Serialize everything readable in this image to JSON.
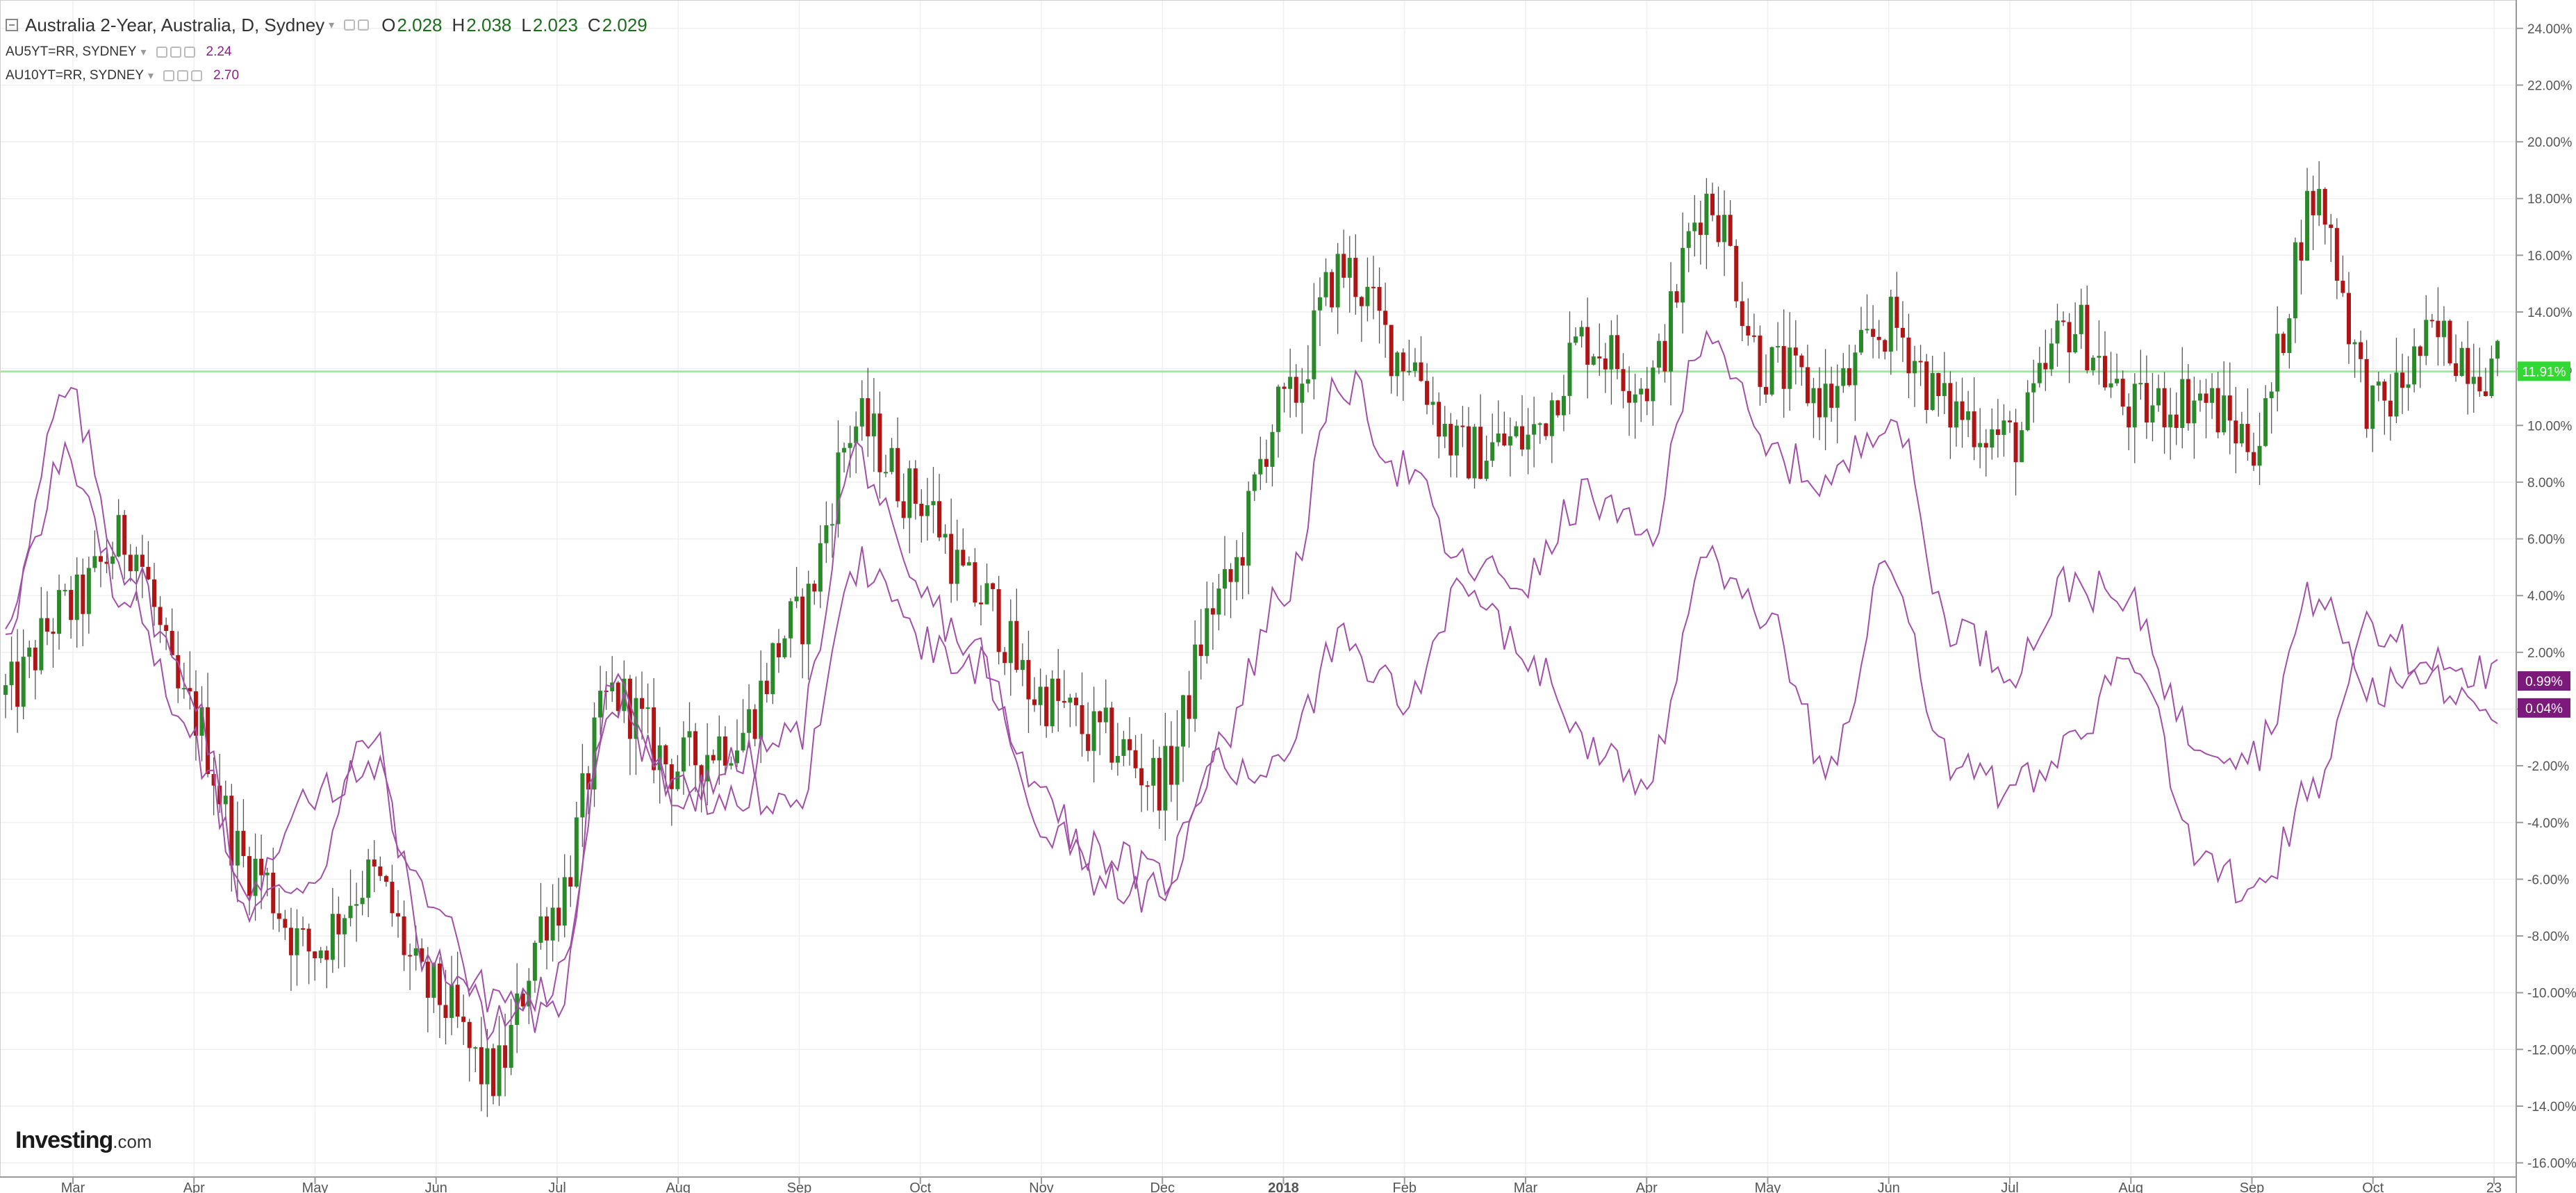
{
  "legend": {
    "main_title": "Australia 2-Year, Australia, D, Sydney",
    "ohlc": [
      {
        "label": "O",
        "value": "2.028"
      },
      {
        "label": "H",
        "value": "2.038"
      },
      {
        "label": "L",
        "value": "2.023"
      },
      {
        "label": "C",
        "value": "2.029"
      }
    ],
    "overlays": [
      {
        "name": "AU5YT=RR, SYDNEY",
        "value": "2.24"
      },
      {
        "name": "AU10YT=RR, SYDNEY",
        "value": "2.70"
      }
    ]
  },
  "logo": {
    "main": "Investing",
    "suffix": ".com"
  },
  "colors": {
    "up": "#2a8a2a",
    "down": "#b01515",
    "overlay": "#a24fa8",
    "overlay_badge": "#7b1a7b",
    "last_badge": "#34d834",
    "last_line": "#9fe89f",
    "grid": "#efefef",
    "axis_text": "#555555"
  },
  "chart_data": {
    "type": "line",
    "title": "Australia 2-Year, Australia, D, Sydney",
    "ylim": [
      -16.5,
      25
    ],
    "y_ticks": [
      "24.00%",
      "22.00%",
      "20.00%",
      "18.00%",
      "16.00%",
      "14.00%",
      "12.00%",
      "10.00%",
      "8.00%",
      "6.00%",
      "4.00%",
      "2.00%",
      "0.00%",
      "-2.00%",
      "-4.00%",
      "-6.00%",
      "-8.00%",
      "-10.00%",
      "-12.00%",
      "-14.00%",
      "-16.00%"
    ],
    "x_ticks": [
      "Mar",
      "Apr",
      "May",
      "Jun",
      "Jul",
      "Aug",
      "Sep",
      "Oct",
      "Nov",
      "Dec",
      "2018",
      "Feb",
      "Mar",
      "Apr",
      "May",
      "Jun",
      "Jul",
      "Aug",
      "Sep",
      "Oct",
      "23"
    ],
    "grid": true,
    "last_value_labels": [
      "11.91%",
      "0.99%",
      "0.04%"
    ],
    "last_value_line": 11.9,
    "series": [
      {
        "name": "Australia 2-Year",
        "style": "candlestick",
        "x": [
          "Feb 15",
          "Mar 1",
          "Mar 15",
          "Apr 1",
          "Apr 15",
          "May 1",
          "May 15",
          "Jun 1",
          "Jun 15",
          "Jul 1",
          "Jul 15",
          "Aug 1",
          "Aug 15",
          "Sep 1",
          "Sep 15",
          "Oct 1",
          "Oct 15",
          "Nov 1",
          "Nov 15",
          "Dec 1",
          "Dec 15",
          "Jan 1",
          "Jan 15",
          "Feb 1",
          "Feb 15",
          "Mar 1",
          "Mar 15",
          "Apr 1",
          "Apr 15",
          "May 1",
          "May 15",
          "Jun 1",
          "Jun 15",
          "Jul 1",
          "Jul 15",
          "Aug 1",
          "Aug 15",
          "Sep 1",
          "Sep 15",
          "Oct 1",
          "Oct 15",
          "Oct 23"
        ],
        "values": [
          0.5,
          3.5,
          6.0,
          0.0,
          -5.5,
          -8.5,
          -6.0,
          -10.0,
          -13.0,
          -7.0,
          0.5,
          -2.0,
          -1.0,
          3.0,
          10.0,
          7.5,
          4.0,
          0.5,
          -1.0,
          -2.5,
          4.0,
          10.5,
          15.5,
          12.5,
          9.0,
          9.5,
          13.0,
          11.5,
          18.0,
          12.0,
          11.0,
          13.5,
          10.5,
          9.5,
          13.5,
          10.5,
          11.0,
          9.5,
          18.0,
          10.5,
          13.0,
          12.0
        ]
      },
      {
        "name": "AU5YT=RR, SYDNEY",
        "style": "line",
        "x": [
          "Feb 15",
          "Mar 1",
          "Mar 15",
          "Apr 1",
          "Apr 15",
          "May 1",
          "May 15",
          "Jun 1",
          "Jun 15",
          "Jul 1",
          "Jul 15",
          "Aug 1",
          "Aug 15",
          "Sep 1",
          "Sep 15",
          "Oct 1",
          "Oct 15",
          "Nov 1",
          "Nov 15",
          "Dec 1",
          "Dec 15",
          "Jan 1",
          "Jan 15",
          "Feb 1",
          "Feb 15",
          "Mar 1",
          "Mar 15",
          "Apr 1",
          "Apr 15",
          "May 1",
          "May 15",
          "Jun 1",
          "Jun 15",
          "Jul 1",
          "Jul 15",
          "Aug 1",
          "Aug 15",
          "Sep 1",
          "Sep 15",
          "Oct 1",
          "Oct 15",
          "Oct 23"
        ],
        "values": [
          3.0,
          11.0,
          5.0,
          1.0,
          -7.0,
          -6.0,
          -1.0,
          -9.0,
          -10.0,
          -11.0,
          1.0,
          -3.0,
          -2.0,
          -1.0,
          9.0,
          4.0,
          2.0,
          -4.0,
          -5.0,
          -6.0,
          -1.0,
          4.0,
          11.5,
          8.5,
          5.0,
          4.5,
          7.5,
          6.0,
          13.5,
          9.0,
          8.0,
          10.5,
          3.0,
          1.5,
          4.5,
          3.5,
          -1.0,
          -1.5,
          4.0,
          0.5,
          2.0,
          1.0
        ]
      },
      {
        "name": "AU10YT=RR, SYDNEY",
        "style": "line",
        "x": [
          "Feb 15",
          "Mar 1",
          "Mar 15",
          "Apr 1",
          "Apr 15",
          "May 1",
          "May 15",
          "Jun 1",
          "Jun 15",
          "Jul 1",
          "Jul 15",
          "Aug 1",
          "Aug 15",
          "Sep 1",
          "Sep 15",
          "Oct 1",
          "Oct 15",
          "Nov 1",
          "Nov 15",
          "Dec 1",
          "Dec 15",
          "Jan 1",
          "Jan 15",
          "Feb 1",
          "Feb 15",
          "Mar 1",
          "Mar 15",
          "Apr 1",
          "Apr 15",
          "May 1",
          "May 15",
          "Jun 1",
          "Jun 15",
          "Jul 1",
          "Jul 15",
          "Aug 1",
          "Aug 15",
          "Sep 1",
          "Sep 15",
          "Oct 1",
          "Oct 15",
          "Oct 23"
        ],
        "values": [
          3.0,
          9.0,
          4.0,
          -1.0,
          -6.0,
          -3.0,
          -2.0,
          -7.0,
          -11.0,
          -10.0,
          0.5,
          -3.0,
          -3.0,
          -3.0,
          5.0,
          2.5,
          1.5,
          -3.0,
          -6.0,
          -6.5,
          -2.0,
          -2.0,
          2.5,
          0.5,
          4.0,
          2.0,
          -1.5,
          -2.5,
          5.0,
          3.0,
          -2.0,
          5.0,
          -2.0,
          -3.0,
          -1.0,
          2.0,
          -5.0,
          -6.5,
          -2.5,
          3.0,
          1.0,
          0.0
        ]
      }
    ]
  }
}
